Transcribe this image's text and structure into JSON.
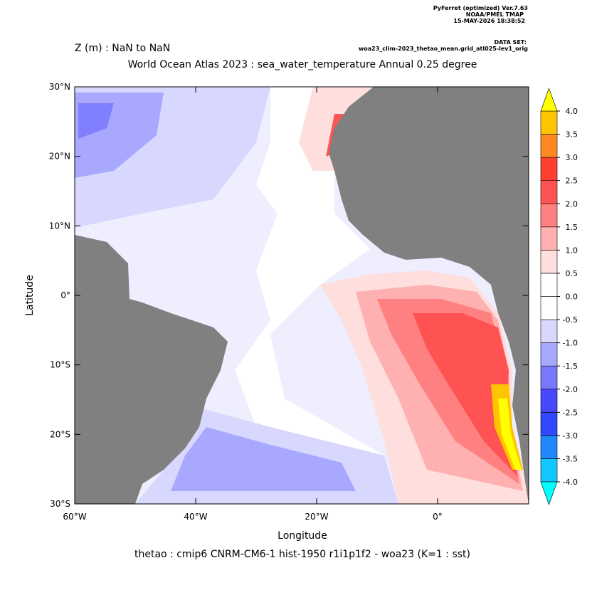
{
  "header": {
    "software": "PyFerret (optimized) Ver.7.63",
    "organization": "NOAA/PMEL TMAP",
    "timestamp": "15-MAY-2026 18:38:52",
    "dataset_label": "DATA SET:",
    "dataset": "woa23_clim-2023_thetao_mean.grid_atl025-lev1_orig"
  },
  "chart_data": {
    "type": "heatmap",
    "subtitle": "Z (m) : NaN to NaN",
    "title": "World Ocean Atlas 2023 : sea_water_temperature Annual  0.25 degree",
    "x_label": "Longitude",
    "y_label": "Latitude",
    "caption": "thetao : cmip6 CNRM-CM6-1 hist-1950 r1i1p1f2 - woa23  (K=1 : sst)",
    "xlim": [
      -60,
      15
    ],
    "ylim": [
      -30,
      30
    ],
    "xticks": [
      {
        "value": -60,
        "label": "60°W"
      },
      {
        "value": -40,
        "label": "40°W"
      },
      {
        "value": -20,
        "label": "20°W"
      },
      {
        "value": 0,
        "label": "0°"
      }
    ],
    "yticks": [
      {
        "value": -30,
        "label": "30°S"
      },
      {
        "value": -20,
        "label": "20°S"
      },
      {
        "value": -10,
        "label": "10°S"
      },
      {
        "value": 0,
        "label": "0°"
      },
      {
        "value": 10,
        "label": "10°N"
      },
      {
        "value": 20,
        "label": "20°N"
      },
      {
        "value": 30,
        "label": "30°N"
      }
    ],
    "grid": false,
    "colorbar": {
      "levels": [
        {
          "value": -4,
          "label": "-4.0"
        },
        {
          "value": -3.5,
          "label": "-3.5"
        },
        {
          "value": -3,
          "label": "-3.0"
        },
        {
          "value": -2.5,
          "label": "-2.5"
        },
        {
          "value": -2,
          "label": "-2.0"
        },
        {
          "value": -1.5,
          "label": "-1.5"
        },
        {
          "value": -1,
          "label": "-1.0"
        },
        {
          "value": -0.5,
          "label": "-0.5"
        },
        {
          "value": 0,
          "label": "0.0"
        },
        {
          "value": 0.5,
          "label": "0.5"
        },
        {
          "value": 1,
          "label": "1.0"
        },
        {
          "value": 1.5,
          "label": "1.5"
        },
        {
          "value": 2,
          "label": "2.0"
        },
        {
          "value": 2.5,
          "label": "2.5"
        },
        {
          "value": 3,
          "label": "3.0"
        },
        {
          "value": 3.5,
          "label": "3.5"
        },
        {
          "value": 4,
          "label": "4.0"
        }
      ],
      "colors": [
        "#10c8ff",
        "#2088ff",
        "#3048ff",
        "#4848ff",
        "#7878ff",
        "#a8a8ff",
        "#d8d8ff",
        "#ffffff",
        "#ffffff",
        "#ffdede",
        "#ffb0b0",
        "#ff8080",
        "#ff5252",
        "#ff4030",
        "#ff8820",
        "#ffc400"
      ],
      "under_color": "#00ffff",
      "over_color": "#ffff00"
    }
  }
}
